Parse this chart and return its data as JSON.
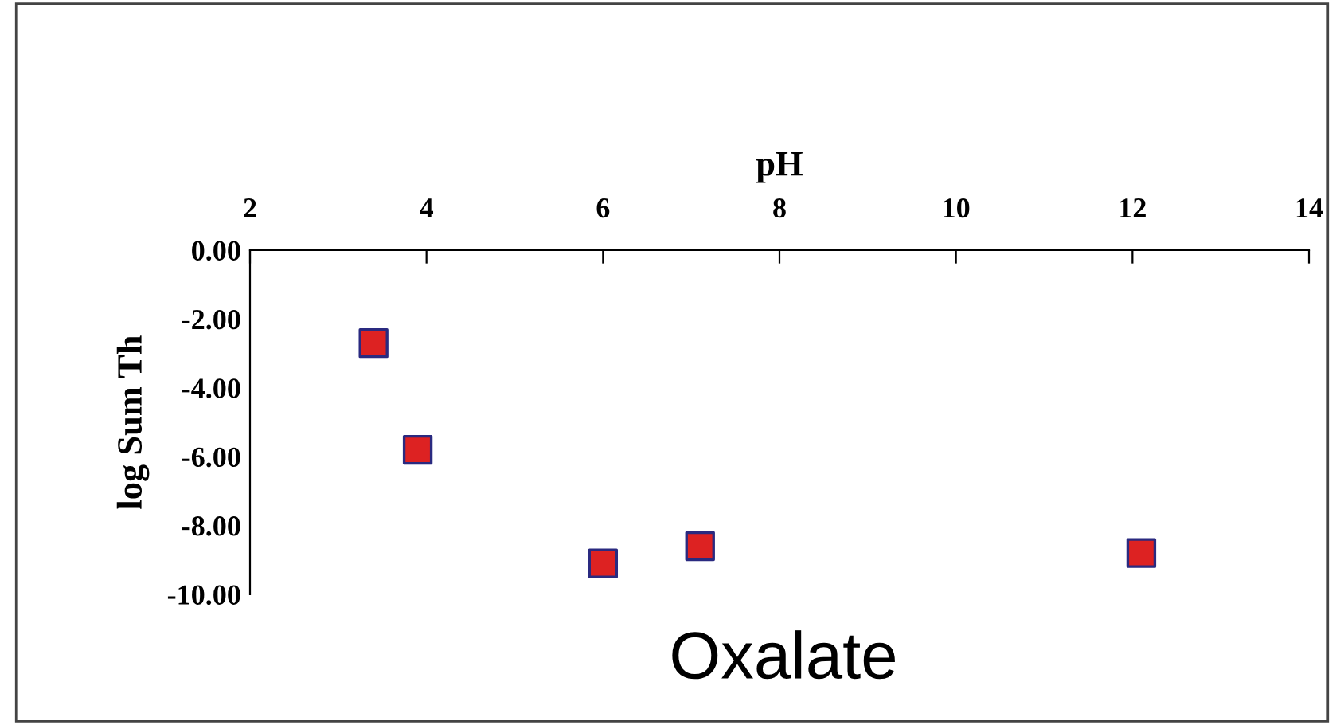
{
  "chart_data": {
    "type": "scatter",
    "xlabel": "pH",
    "ylabel": "log Sum Th",
    "annotations": [
      "Oxalate"
    ],
    "x": [
      3.4,
      3.9,
      6.0,
      7.1,
      12.1
    ],
    "series": [
      {
        "color": "#dd2222",
        "values": [
          -2.7,
          -5.8,
          -9.1,
          -8.6,
          -8.8
        ]
      }
    ],
    "xlim": [
      2,
      14
    ],
    "xticks": [
      2,
      4,
      6,
      8,
      10,
      12,
      14
    ],
    "ylim": [
      -10,
      0
    ],
    "yticks": [
      {
        "value": 0,
        "label": "0.00"
      },
      {
        "value": -2,
        "label": "-2.00"
      },
      {
        "value": -4,
        "label": "-4.00"
      },
      {
        "value": -6,
        "label": "-6.00"
      },
      {
        "value": -8,
        "label": "-8.00"
      },
      {
        "value": -10,
        "label": "-10.00"
      }
    ],
    "marker": "square",
    "grid": false,
    "legend": false
  }
}
